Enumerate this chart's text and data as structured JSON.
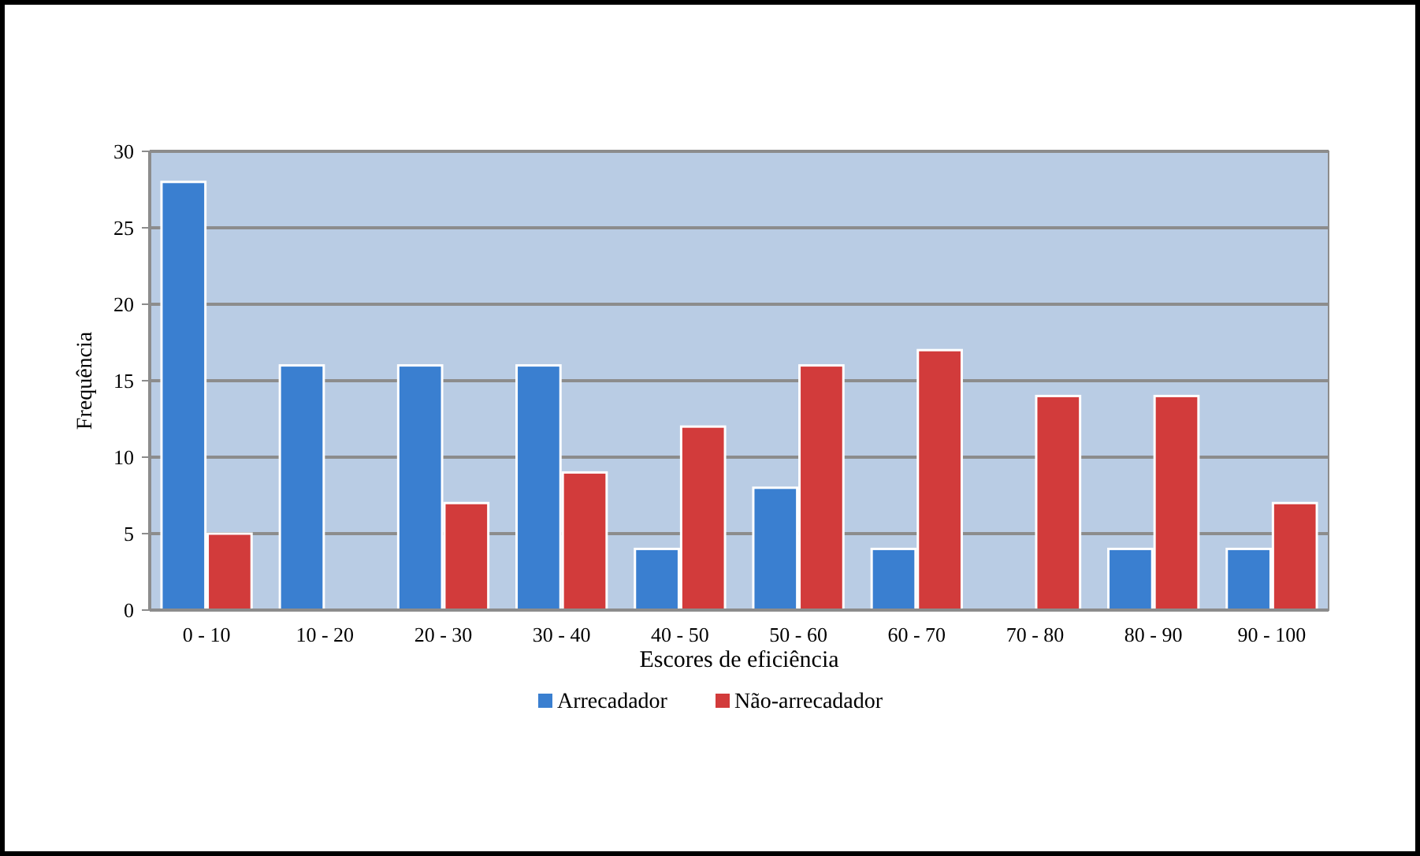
{
  "chart_data": {
    "type": "bar",
    "xlabel": "Escores de eficiência",
    "ylabel": "Frequência",
    "categories": [
      "0 - 10",
      "10 - 20",
      "20 - 30",
      "30 - 40",
      "40 - 50",
      "50 - 60",
      "60 - 70",
      "70 - 80",
      "80 - 90",
      "90 - 100"
    ],
    "series": [
      {
        "name": "Arrecadador",
        "color": "#3a7fd0",
        "values": [
          28,
          16,
          16,
          16,
          4,
          8,
          4,
          0,
          4,
          4
        ]
      },
      {
        "name": "Não-arrecadador",
        "color": "#d23b3b",
        "values": [
          5,
          0,
          7,
          9,
          12,
          16,
          17,
          14,
          14,
          7
        ]
      }
    ],
    "ylim": [
      0,
      30
    ],
    "yticks": [
      0,
      5,
      10,
      15,
      20,
      25,
      30
    ],
    "grid": "y",
    "legend": "bottom"
  }
}
